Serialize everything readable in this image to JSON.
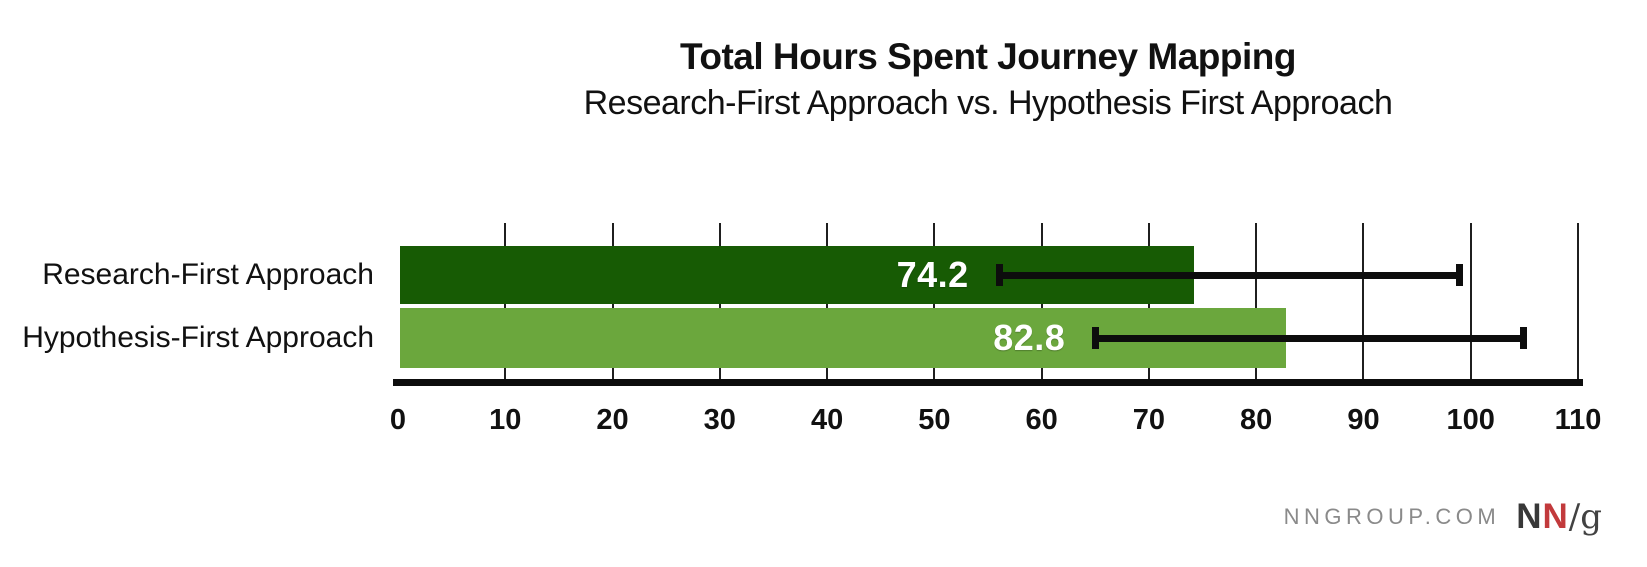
{
  "header": {
    "title": "Total Hours Spent Journey Mapping",
    "subtitle": "Research-First Approach vs. Hypothesis First Approach"
  },
  "chart_data": {
    "type": "bar",
    "orientation": "horizontal",
    "title": "Total Hours Spent Journey Mapping",
    "subtitle": "Research-First Approach vs. Hypothesis First Approach",
    "categories": [
      "Research-First Approach",
      "Hypothesis-First Approach"
    ],
    "values": [
      74.2,
      82.8
    ],
    "value_labels": [
      "74.2",
      "82.8"
    ],
    "error_bars": [
      {
        "low": 56,
        "high": 99
      },
      {
        "low": 65,
        "high": 105
      }
    ],
    "bar_colors": [
      "#175B04",
      "#6BA73D"
    ],
    "xlim": [
      0,
      110
    ],
    "xticks": [
      0,
      10,
      20,
      30,
      40,
      50,
      60,
      70,
      80,
      90,
      100,
      110
    ],
    "xlabel": "",
    "ylabel": "",
    "grid": "vertical gridlines at each tick from 10 to 110",
    "legend": false,
    "units": "hours"
  },
  "footer": {
    "site": "NNGROUP.COM",
    "logo_n1": "N",
    "logo_n2": "N",
    "logo_slash_g": "/g"
  },
  "colors": {
    "background": "#ffffff",
    "bar_dark_green": "#175B04",
    "bar_light_green": "#6BA73D",
    "axis_black": "#0d0d0d",
    "gridline": "#1f1f1f",
    "footer_gray": "#8a8a8a",
    "logo_red": "#c23a3c",
    "text": "#111111",
    "value_text": "#ffffff"
  }
}
